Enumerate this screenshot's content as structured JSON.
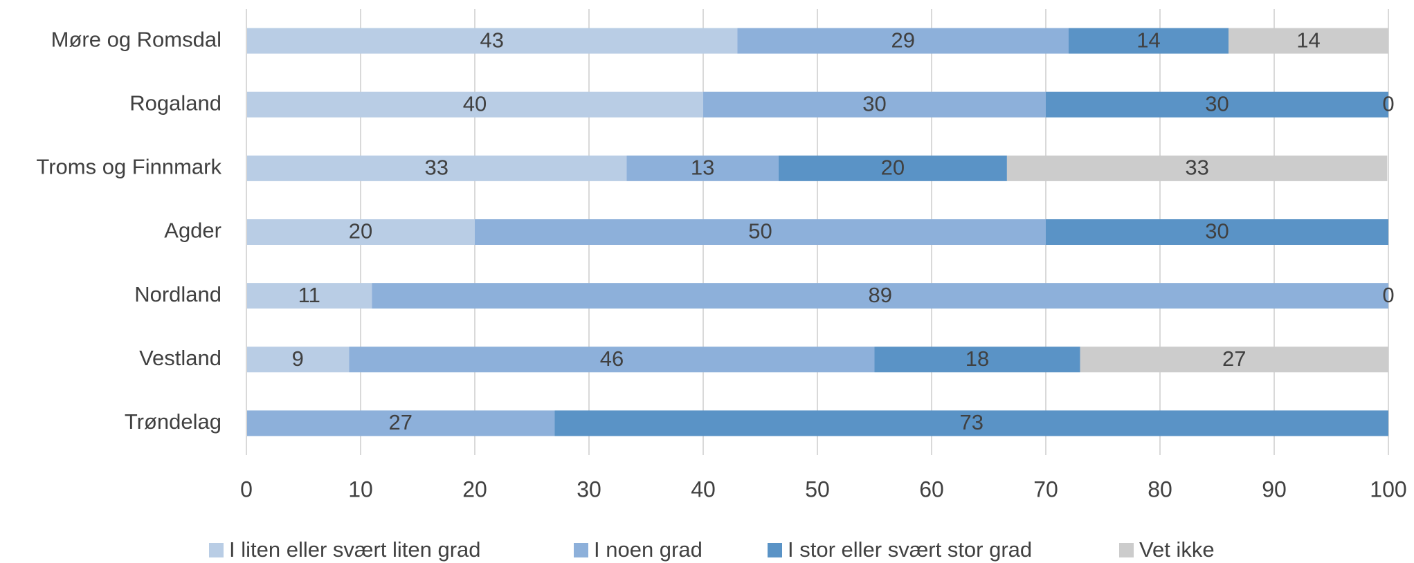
{
  "chart_data": {
    "type": "stacked-barh",
    "categories": [
      "Møre og Romsdal",
      "Rogaland",
      "Troms og Finnmark",
      "Agder",
      "Nordland",
      "Vestland",
      "Trøndelag"
    ],
    "series": [
      {
        "name": "I liten eller svært liten grad",
        "color": "#b9cde5",
        "values": [
          43,
          40,
          33.3,
          20,
          11,
          9,
          null
        ],
        "value_labels": [
          "43",
          "40",
          "33",
          "20",
          "11",
          "9",
          null
        ]
      },
      {
        "name": "I noen grad",
        "color": "#8db0da",
        "values": [
          29,
          30,
          13.3,
          50,
          89,
          46,
          27
        ],
        "value_labels": [
          "29",
          "30",
          "13",
          "50",
          "89",
          "46",
          "27"
        ]
      },
      {
        "name": "I stor eller svært stor grad",
        "color": "#5a93c6",
        "values": [
          14,
          30,
          20,
          30,
          0,
          18,
          73
        ],
        "value_labels": [
          "14",
          "30",
          "20",
          "30",
          "0",
          "18",
          "73"
        ]
      },
      {
        "name": "Vet ikke",
        "color": "#cccccc",
        "values": [
          14,
          0,
          33.3,
          null,
          null,
          27,
          null
        ],
        "value_labels": [
          "14",
          "0",
          "33",
          null,
          null,
          "27",
          null
        ]
      }
    ],
    "xlim": [
      0,
      100
    ],
    "xticks": [
      0,
      10,
      20,
      30,
      40,
      50,
      60,
      70,
      80,
      90,
      100
    ],
    "grid": true,
    "legend": "bottom"
  }
}
